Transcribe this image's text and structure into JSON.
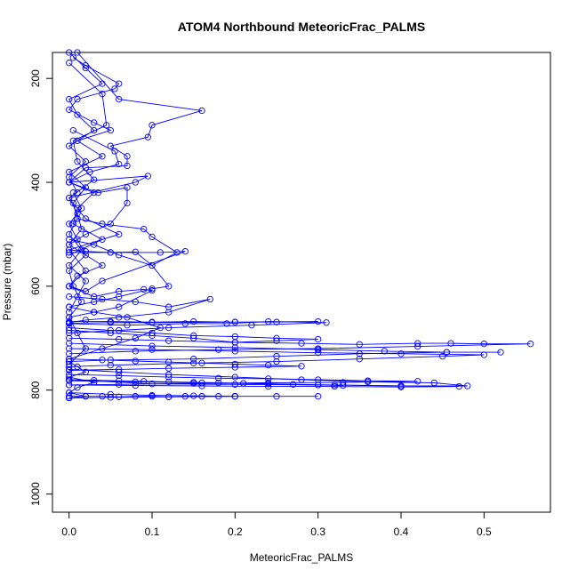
{
  "chart_data": {
    "type": "line",
    "title": "ATOM4 Northbound MeteoricFrac_PALMS",
    "xlabel": "MeteoricFrac_PALMS",
    "ylabel": "Pressure (mbar)",
    "xlim": [
      -0.02,
      0.58
    ],
    "ylim": [
      1035,
      150
    ],
    "y_reversed": true,
    "x_ticks": [
      0.0,
      0.1,
      0.2,
      0.3,
      0.4,
      0.5
    ],
    "x_tick_labels": [
      "0.0",
      "0.1",
      "0.2",
      "0.3",
      "0.4",
      "0.5"
    ],
    "y_ticks": [
      200,
      400,
      600,
      800,
      1000
    ],
    "y_tick_labels": [
      "200",
      "400",
      "600",
      "800",
      "1000"
    ],
    "grid": false,
    "legend": "none",
    "color": "#0000ff",
    "marker": "open-circle",
    "series": [
      {
        "x": [
          0.005,
          0.02,
          0.06,
          0.055,
          0.01,
          0.0,
          0.03,
          0.05,
          0.01,
          0.04,
          0.0,
          0.02,
          0.005,
          0.01,
          0.0,
          0.015,
          0.0,
          0.02,
          0.01,
          0.0
        ],
        "y": [
          160,
          175,
          210,
          220,
          240,
          260,
          285,
          300,
          320,
          350,
          380,
          410,
          440,
          470,
          500,
          530,
          560,
          590,
          620,
          650
        ]
      },
      {
        "x": [
          0.01,
          0.06,
          0.16,
          0.1,
          0.095,
          0.05,
          0.07,
          0.07,
          0.02,
          0.0,
          0.03,
          0.01,
          0.005,
          0.04,
          0.0
        ],
        "y": [
          150,
          240,
          262,
          290,
          313,
          330,
          350,
          368,
          372,
          400,
          420,
          450,
          480,
          510,
          540
        ]
      },
      {
        "x": [
          0.0,
          0.04,
          0.045,
          0.005,
          0.01,
          0.03,
          0.0,
          0.02,
          0.06,
          0.0,
          0.02,
          0.0
        ],
        "y": [
          170,
          230,
          290,
          320,
          360,
          395,
          430,
          470,
          500,
          530,
          570,
          600
        ]
      },
      {
        "x": [
          0.005,
          0.055,
          0.06,
          0.025,
          0.0,
          0.095,
          0.08,
          0.0,
          0.01,
          0.015,
          0.0
        ],
        "y": [
          300,
          340,
          365,
          380,
          400,
          388,
          400,
          430,
          460,
          490,
          520
        ]
      },
      {
        "x": [
          0.0,
          0.035,
          0.07,
          0.07,
          0.05,
          0.02,
          0.0,
          0.04,
          0.01,
          0.0
        ],
        "y": [
          400,
          420,
          410,
          440,
          480,
          500,
          520,
          560,
          580,
          600
        ]
      },
      {
        "x": [
          0.01,
          0.04,
          0.09,
          0.1,
          0.13,
          0.1,
          0.06,
          0.03,
          0.0
        ],
        "y": [
          470,
          480,
          490,
          505,
          535,
          560,
          540,
          520,
          510
        ]
      },
      {
        "x": [
          0.0,
          0.02,
          0.05,
          0.08,
          0.1,
          0.12,
          0.1,
          0.06,
          0.03,
          0.0
        ],
        "y": [
          530,
          533,
          535,
          534,
          560,
          600,
          605,
          620,
          630,
          640
        ]
      },
      {
        "x": [
          0.0,
          0.05,
          0.11,
          0.14,
          0.04,
          0.02,
          0.0
        ],
        "y": [
          535,
          535,
          535,
          533,
          590,
          610,
          600
        ]
      },
      {
        "x": [
          0.0,
          0.03,
          0.06,
          0.09,
          0.1,
          0.06,
          0.03,
          0.0
        ],
        "y": [
          600,
          620,
          610,
          606,
          608,
          640,
          650,
          660
        ]
      },
      {
        "x": [
          0.0,
          0.04,
          0.08,
          0.12,
          0.17,
          0.12,
          0.06,
          0.02,
          0.0
        ],
        "y": [
          620,
          625,
          630,
          640,
          625,
          650,
          660,
          665,
          670
        ]
      },
      {
        "x": [
          0.0,
          0.05,
          0.1,
          0.15,
          0.2,
          0.25,
          0.3,
          0.2,
          0.1,
          0.05,
          0.0
        ],
        "y": [
          668,
          668,
          669,
          668,
          669,
          669,
          668,
          669,
          670,
          670,
          671
        ]
      },
      {
        "x": [
          0.0,
          0.07,
          0.14,
          0.19,
          0.24,
          0.31,
          0.22,
          0.12,
          0.06,
          0.0
        ],
        "y": [
          672,
          675,
          672,
          672,
          668,
          670,
          675,
          680,
          685,
          690
        ]
      },
      {
        "x": [
          0.0,
          0.06,
          0.12,
          0.2,
          0.28,
          0.35,
          0.42,
          0.46,
          0.5,
          0.556,
          0.42,
          0.3,
          0.18,
          0.08,
          0.0
        ],
        "y": [
          700,
          702,
          705,
          708,
          710,
          712,
          710,
          710,
          711,
          711,
          716,
          720,
          722,
          725,
          730
        ]
      },
      {
        "x": [
          0.0,
          0.1,
          0.2,
          0.3,
          0.38,
          0.455,
          0.52,
          0.455,
          0.35,
          0.25,
          0.15,
          0.05,
          0.0
        ],
        "y": [
          710,
          715,
          718,
          722,
          725,
          727,
          727,
          727,
          730,
          735,
          740,
          742,
          745
        ]
      },
      {
        "x": [
          0.0,
          0.05,
          0.1,
          0.15,
          0.2,
          0.25,
          0.3,
          0.25,
          0.2,
          0.15,
          0.1,
          0.05,
          0.0
        ],
        "y": [
          680,
          685,
          690,
          695,
          697,
          700,
          702,
          705,
          708,
          700,
          695,
          690,
          685
        ]
      },
      {
        "x": [
          0.0,
          0.06,
          0.12,
          0.2,
          0.28,
          0.36,
          0.44,
          0.48,
          0.4,
          0.3,
          0.2,
          0.1,
          0.0
        ],
        "y": [
          760,
          765,
          770,
          775,
          780,
          784,
          786,
          792,
          792,
          790,
          789,
          788,
          780
        ]
      },
      {
        "x": [
          0.0,
          0.08,
          0.16,
          0.24,
          0.32,
          0.4,
          0.47,
          0.4,
          0.32,
          0.24,
          0.16,
          0.08,
          0.0
        ],
        "y": [
          790,
          791,
          792,
          793,
          793,
          794,
          793,
          792,
          790,
          788,
          786,
          784,
          782
        ]
      },
      {
        "x": [
          0.0,
          0.05,
          0.1,
          0.15,
          0.2,
          0.25,
          0.3,
          0.2,
          0.12,
          0.05,
          0.0
        ],
        "y": [
          805,
          808,
          810,
          811,
          812,
          812,
          812,
          812,
          813,
          814,
          815
        ]
      },
      {
        "x": [
          0.0,
          0.06,
          0.12,
          0.18,
          0.24,
          0.3,
          0.36,
          0.42,
          0.33,
          0.24,
          0.15,
          0.06,
          0.0
        ],
        "y": [
          770,
          772,
          775,
          777,
          778,
          780,
          782,
          783,
          785,
          786,
          787,
          789,
          790
        ]
      },
      {
        "x": [
          0.0,
          0.04,
          0.08,
          0.12,
          0.16,
          0.2,
          0.24,
          0.28,
          0.2,
          0.12,
          0.06,
          0.0
        ],
        "y": [
          740,
          742,
          744,
          746,
          748,
          750,
          752,
          754,
          756,
          758,
          760,
          762
        ]
      },
      {
        "x": [
          0.0,
          0.1,
          0.2,
          0.3,
          0.4,
          0.5,
          0.45,
          0.35,
          0.25,
          0.15,
          0.05,
          0.0
        ],
        "y": [
          720,
          722,
          725,
          728,
          730,
          732,
          735,
          740,
          745,
          748,
          752,
          755
        ]
      },
      {
        "x": [
          0.0,
          0.03,
          0.07,
          0.11,
          0.08,
          0.04,
          0.0
        ],
        "y": [
          640,
          650,
          660,
          680,
          700,
          720,
          740
        ]
      },
      {
        "x": [
          0.0,
          0.02,
          0.04,
          0.0,
          0.01,
          0.03,
          0.0,
          0.02,
          0.0,
          0.01
        ],
        "y": [
          150,
          180,
          210,
          240,
          270,
          300,
          330,
          360,
          390,
          420
        ]
      },
      {
        "x": [
          0.005,
          0.015,
          0.0,
          0.01,
          0.02,
          0.0,
          0.005,
          0.015,
          0.0,
          0.01,
          0.02,
          0.0
        ],
        "y": [
          420,
          450,
          480,
          510,
          540,
          570,
          600,
          630,
          660,
          690,
          720,
          750
        ]
      },
      {
        "x": [
          0.0,
          0.01,
          0.02,
          0.0,
          0.03,
          0.01,
          0.0,
          0.02,
          0.0
        ],
        "y": [
          745,
          755,
          765,
          775,
          785,
          795,
          805,
          812,
          815
        ]
      },
      {
        "x": [
          0.0,
          0.02,
          0.04,
          0.06,
          0.08,
          0.1,
          0.12,
          0.14,
          0.16,
          0.18,
          0.2
        ],
        "y": [
          812,
          812,
          812,
          813,
          812,
          812,
          813,
          812,
          812,
          812,
          812
        ]
      },
      {
        "x": [
          0.0,
          0.03,
          0.06,
          0.09,
          0.12,
          0.15,
          0.18,
          0.21,
          0.24,
          0.27,
          0.3,
          0.33
        ],
        "y": [
          780,
          781,
          782,
          783,
          784,
          785,
          786,
          787,
          788,
          789,
          790,
          791
        ]
      }
    ]
  }
}
